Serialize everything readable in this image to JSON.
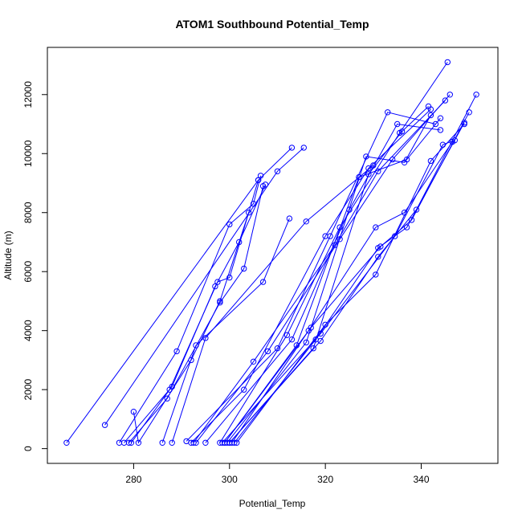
{
  "chart_data": {
    "type": "line",
    "title": "ATOM1 Southbound Potential_Temp",
    "xlabel": "Potential_Temp",
    "ylabel": "Altitude (m)",
    "xlim": [
      262,
      356
    ],
    "ylim": [
      -500,
      13600
    ],
    "x_ticks": [
      280,
      300,
      320,
      340
    ],
    "y_ticks": [
      0,
      2000,
      4000,
      6000,
      8000,
      10000,
      12000
    ],
    "grid": false,
    "colors": {
      "series": "#0000ff",
      "axis": "#000000"
    },
    "series": [
      {
        "x": [
          266,
          306,
          313
        ],
        "y": [
          200,
          9100,
          10200
        ]
      },
      {
        "x": [
          274,
          310,
          315.5
        ],
        "y": [
          800,
          9400,
          10200
        ]
      },
      {
        "x": [
          277,
          289,
          300,
          305,
          306.5
        ],
        "y": [
          200,
          3300,
          7600,
          8300,
          9250
        ]
      },
      {
        "x": [
          278,
          288,
          297,
          302,
          307.5
        ],
        "y": [
          200,
          2100,
          5500,
          7000,
          8950
        ]
      },
      {
        "x": [
          279,
          287,
          298,
          303,
          307
        ],
        "y": [
          200,
          1700,
          4950,
          6100,
          8900
        ]
      },
      {
        "x": [
          279.5,
          287.5,
          297.5,
          300,
          306
        ],
        "y": [
          200,
          2000,
          5650,
          5800,
          9100
        ]
      },
      {
        "x": [
          280,
          281,
          292,
          298,
          304
        ],
        "y": [
          1250,
          200,
          3000,
          5000,
          8000
        ]
      },
      {
        "x": [
          286,
          293,
          307,
          312.5
        ],
        "y": [
          200,
          3500,
          5650,
          7800
        ]
      },
      {
        "x": [
          288,
          295,
          316,
          330
        ],
        "y": [
          200,
          3750,
          7700,
          9600
        ]
      },
      {
        "x": [
          292,
          303,
          320,
          329,
          342
        ],
        "y": [
          200,
          2000,
          7200,
          9500,
          11500
        ]
      },
      {
        "x": [
          292.5,
          305,
          322,
          331,
          345
        ],
        "y": [
          200,
          2950,
          6900,
          9400,
          11800
        ]
      },
      {
        "x": [
          293,
          308,
          323,
          334,
          346
        ],
        "y": [
          200,
          3300,
          7100,
          9800,
          12000
        ]
      },
      {
        "x": [
          291,
          310,
          321,
          333,
          343
        ],
        "y": [
          250,
          3400,
          7200,
          11400,
          11000
        ]
      },
      {
        "x": [
          295,
          313,
          325,
          335,
          344
        ],
        "y": [
          200,
          3700,
          8100,
          11000,
          10800
        ]
      },
      {
        "x": [
          298,
          312,
          323,
          335.5,
          345.5
        ],
        "y": [
          200,
          3850,
          7500,
          10700,
          13100
        ]
      },
      {
        "x": [
          299,
          314,
          327,
          337,
          344
        ],
        "y": [
          200,
          3500,
          9200,
          9800,
          11200
        ]
      },
      {
        "x": [
          299.5,
          316,
          328.5,
          336.5,
          342
        ],
        "y": [
          200,
          3600,
          9900,
          9700,
          11300
        ]
      },
      {
        "x": [
          300,
          317.5,
          329,
          336,
          341.5
        ],
        "y": [
          200,
          3400,
          9300,
          10750,
          11600
        ]
      },
      {
        "x": [
          300.5,
          316.5,
          330.5,
          336.5,
          346.5
        ],
        "y": [
          200,
          4000,
          7500,
          8000,
          10400
        ]
      },
      {
        "x": [
          301,
          318,
          331,
          337,
          349
        ],
        "y": [
          200,
          3700,
          6800,
          7500,
          11050
        ]
      },
      {
        "x": [
          299,
          317,
          331.5,
          338,
          350
        ],
        "y": [
          200,
          4100,
          6850,
          7750,
          11400
        ]
      },
      {
        "x": [
          300,
          319,
          331,
          339,
          351.5
        ],
        "y": [
          200,
          3650,
          6500,
          8100,
          12000
        ]
      },
      {
        "x": [
          301.5,
          320,
          330.5,
          342,
          349
        ],
        "y": [
          200,
          4200,
          5900,
          9750,
          11000
        ]
      },
      {
        "x": [
          298.5,
          319,
          334.5,
          344.5,
          347
        ],
        "y": [
          200,
          3900,
          7200,
          10300,
          10450
        ]
      }
    ]
  }
}
